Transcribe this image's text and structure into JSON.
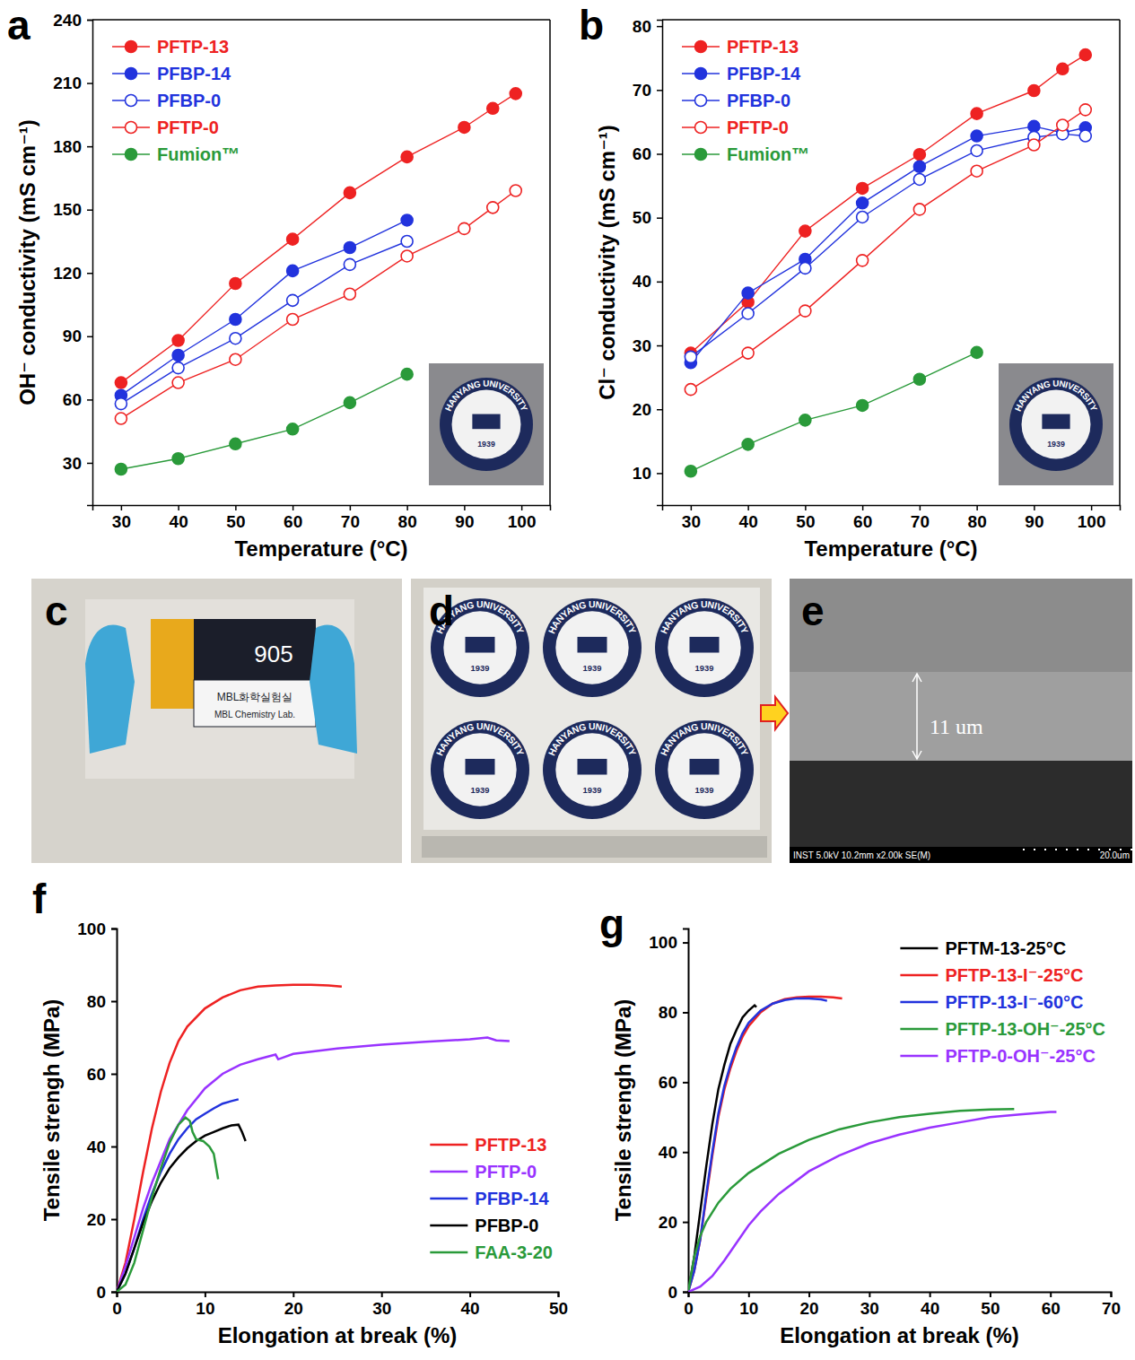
{
  "chart_data": [
    {
      "panel": "a",
      "type": "line",
      "x_label": "Temperature (°C)",
      "y_label": "OH⁻ conductivity (mS cm⁻¹)",
      "x": [
        30,
        40,
        50,
        60,
        70,
        80,
        90,
        95,
        99
      ],
      "xlim": [
        25,
        105
      ],
      "xticks": [
        30,
        40,
        50,
        60,
        70,
        80,
        90,
        100
      ],
      "ylim": [
        10,
        240
      ],
      "yticks": [
        30,
        60,
        90,
        120,
        150,
        180,
        210,
        240
      ],
      "legend": "upper left",
      "inset": [
        "HANYANG UNIVERSITY",
        "1939"
      ],
      "series": [
        {
          "name": "PFTP-13",
          "color": "#ee2222",
          "marker": "circle",
          "values": [
            68,
            88,
            115,
            136,
            158,
            175,
            189,
            198,
            205
          ]
        },
        {
          "name": "PFBP-14",
          "color": "#2233dd",
          "marker": "circle",
          "values": [
            62,
            81,
            98,
            121,
            132,
            145,
            null,
            null,
            null
          ]
        },
        {
          "name": "PFBP-0",
          "color": "#2233dd",
          "marker": "circle-open",
          "values": [
            58,
            75,
            89,
            107,
            124,
            135,
            null,
            null,
            null
          ]
        },
        {
          "name": "PFTP-0",
          "color": "#ee2222",
          "marker": "circle-open",
          "values": [
            51,
            68,
            79,
            98,
            110,
            128,
            141,
            151,
            159
          ]
        },
        {
          "name": "Fumion™",
          "color": "#2a9a3a",
          "marker": "circle",
          "values": [
            27,
            32,
            39,
            46,
            58.5,
            72,
            null,
            null,
            null
          ]
        }
      ]
    },
    {
      "panel": "b",
      "type": "line",
      "x_label": "Temperature (°C)",
      "y_label": "Cl⁻ conductivity (mS cm⁻¹)",
      "x": [
        30,
        40,
        50,
        60,
        70,
        80,
        90,
        95,
        99
      ],
      "xlim": [
        25,
        105
      ],
      "xticks": [
        30,
        40,
        50,
        60,
        70,
        80,
        90,
        100
      ],
      "ylim": [
        5,
        81
      ],
      "yticks": [
        10,
        20,
        30,
        40,
        50,
        60,
        70,
        80
      ],
      "legend": "upper left",
      "inset": [
        "HANYANG UNIVERSITY",
        "1939"
      ],
      "series": [
        {
          "name": "PFTP-13",
          "color": "#ee2222",
          "marker": "circle",
          "values": [
            28.8,
            36.8,
            47.9,
            54.6,
            59.9,
            66.3,
            69.9,
            73.3,
            75.5
          ]
        },
        {
          "name": "PFBP-14",
          "color": "#2233dd",
          "marker": "circle",
          "values": [
            27.3,
            38.2,
            43.5,
            52.3,
            58.0,
            62.8,
            64.3,
            63.3,
            64.1
          ]
        },
        {
          "name": "PFBP-0",
          "color": "#2233dd",
          "marker": "circle-open",
          "values": [
            28.2,
            35.0,
            42.1,
            50.1,
            56.0,
            60.5,
            62.6,
            63.1,
            62.8
          ]
        },
        {
          "name": "PFTP-0",
          "color": "#ee2222",
          "marker": "circle-open",
          "values": [
            23.1,
            28.8,
            35.4,
            43.3,
            51.3,
            57.3,
            61.4,
            64.5,
            66.9
          ]
        },
        {
          "name": "Fumion™",
          "color": "#2a9a3a",
          "marker": "circle",
          "values": [
            10.3,
            14.5,
            18.3,
            20.6,
            24.7,
            28.9,
            null,
            null,
            null
          ]
        }
      ]
    },
    {
      "panel": "f",
      "type": "line",
      "x_label": "Elongation at break (%)",
      "y_label": "Tensile strengh (MPa)",
      "xlim": [
        0,
        50
      ],
      "xticks": [
        0,
        10,
        20,
        30,
        40,
        50
      ],
      "ylim": [
        0,
        100
      ],
      "yticks": [
        0,
        20,
        40,
        60,
        80,
        100
      ],
      "legend": "lower right",
      "series": [
        {
          "name": "PFTP-13",
          "color": "#ee2222",
          "x": [
            0,
            1,
            2,
            3,
            4,
            5,
            6,
            7,
            8,
            10,
            12,
            14,
            16,
            18,
            20,
            22,
            24,
            25.5
          ],
          "values": [
            0,
            8,
            20,
            33,
            45,
            55,
            63,
            69,
            73,
            78,
            81,
            83,
            84,
            84.3,
            84.5,
            84.5,
            84.3,
            84
          ]
        },
        {
          "name": "PFTP-0",
          "color": "#9933ff",
          "x": [
            0,
            1,
            2,
            3,
            4,
            5,
            6,
            8,
            10,
            12,
            14,
            16,
            18,
            18.3,
            20,
            25,
            30,
            35,
            40,
            42,
            43,
            44.5
          ],
          "values": [
            0,
            7,
            15,
            23,
            30,
            36,
            42,
            50,
            56,
            60,
            62.5,
            64,
            65.3,
            64,
            65.5,
            67,
            68,
            68.8,
            69.5,
            70,
            69.2,
            69
          ]
        },
        {
          "name": "PFBP-14",
          "color": "#2233dd",
          "x": [
            0,
            1,
            2,
            3,
            4,
            5,
            6,
            7,
            8,
            9,
            10,
            11,
            12,
            13,
            13.8
          ],
          "values": [
            0,
            5,
            12,
            20,
            27,
            33,
            38,
            42,
            45,
            47.5,
            49,
            50.5,
            51.8,
            52.5,
            53
          ]
        },
        {
          "name": "PFBP-0",
          "color": "#000000",
          "x": [
            0,
            1,
            2,
            3,
            4,
            5,
            6,
            7,
            8,
            9,
            10,
            11,
            12,
            13,
            13.8,
            14.2,
            14.6
          ],
          "values": [
            0,
            5,
            12,
            19,
            25,
            30,
            34,
            37,
            39.5,
            41.5,
            43,
            44,
            45,
            45.8,
            46,
            44,
            41.5
          ]
        },
        {
          "name": "FAA-3-20",
          "color": "#2a9a3a",
          "x": [
            0,
            1,
            2,
            3,
            4,
            5,
            6,
            7,
            7.8,
            8.3,
            8.6,
            9,
            9.8,
            10.5,
            11,
            11.5
          ],
          "values": [
            0,
            2,
            8,
            17,
            26,
            34,
            41,
            46,
            48,
            47,
            44,
            42,
            41.5,
            40,
            38,
            31
          ]
        }
      ]
    },
    {
      "panel": "g",
      "type": "line",
      "x_label": "Elongation at break (%)",
      "y_label": "Tensile strengh (MPa)",
      "xlim": [
        0,
        70
      ],
      "xticks": [
        0,
        10,
        20,
        30,
        40,
        50,
        60,
        70
      ],
      "ylim": [
        0,
        104
      ],
      "yticks": [
        0,
        20,
        40,
        60,
        80,
        100
      ],
      "legend": "upper right",
      "series": [
        {
          "name": "PFTM-13-25°C",
          "color": "#000000",
          "x": [
            0,
            1,
            2,
            3,
            4,
            5,
            6,
            7,
            8,
            9,
            10,
            11,
            11.3
          ],
          "values": [
            0,
            10,
            23,
            36,
            48,
            58,
            65,
            71,
            75,
            78.5,
            80.5,
            82,
            81.5
          ]
        },
        {
          "name": "PFTP-13-I⁻-25°C",
          "color": "#ee2222",
          "x": [
            0,
            1,
            2,
            3,
            4,
            5,
            6,
            7,
            8,
            9,
            10,
            12,
            14,
            16,
            18,
            20,
            22,
            24,
            25.5
          ],
          "values": [
            0,
            6,
            15,
            27,
            39,
            50,
            58,
            64,
            69,
            73,
            76,
            80,
            82.5,
            83.8,
            84.3,
            84.5,
            84.5,
            84.3,
            84
          ]
        },
        {
          "name": "PFTP-13-I⁻-60°C",
          "color": "#2233dd",
          "x": [
            0,
            1,
            2,
            3,
            4,
            5,
            6,
            7,
            8,
            9,
            10,
            12,
            14,
            16,
            18,
            20,
            22,
            23
          ],
          "values": [
            0,
            6,
            15,
            28,
            40,
            51,
            59,
            65,
            70,
            74,
            77,
            80.5,
            82.5,
            83.5,
            84,
            84,
            83.7,
            83.3
          ]
        },
        {
          "name": "PFTP-13-OH⁻-25°C",
          "color": "#2a9a3a",
          "x": [
            0,
            0.5,
            1,
            2,
            3,
            5,
            7,
            10,
            15,
            20,
            25,
            30,
            35,
            40,
            45,
            50,
            54
          ],
          "values": [
            0,
            5,
            10,
            16,
            20,
            25.5,
            29.5,
            34,
            39.5,
            43.5,
            46.5,
            48.5,
            50,
            51,
            51.8,
            52.2,
            52.3
          ]
        },
        {
          "name": "PFTP-0-OH⁻-25°C",
          "color": "#9933ff",
          "x": [
            0,
            2,
            4,
            6,
            8,
            10,
            12,
            15,
            20,
            25,
            30,
            35,
            40,
            45,
            50,
            55,
            60,
            61
          ],
          "values": [
            0,
            1.5,
            4.5,
            9,
            14,
            19,
            23,
            28,
            34.5,
            39,
            42.5,
            45,
            47,
            48.5,
            50,
            50.8,
            51.5,
            51.5
          ]
        }
      ]
    }
  ],
  "photos": [
    {
      "panel": "c",
      "texts": [
        "905",
        "MBL화학실험실",
        "MBL Chemistry Lab."
      ]
    },
    {
      "panel": "d",
      "texts": [
        "HANYANG UNIVERSITY",
        "1939"
      ]
    },
    {
      "panel": "e",
      "texts": [
        "11 um",
        "INST 5.0kV 10.2mm x2.00k SE(M)",
        "20.0um"
      ]
    }
  ]
}
